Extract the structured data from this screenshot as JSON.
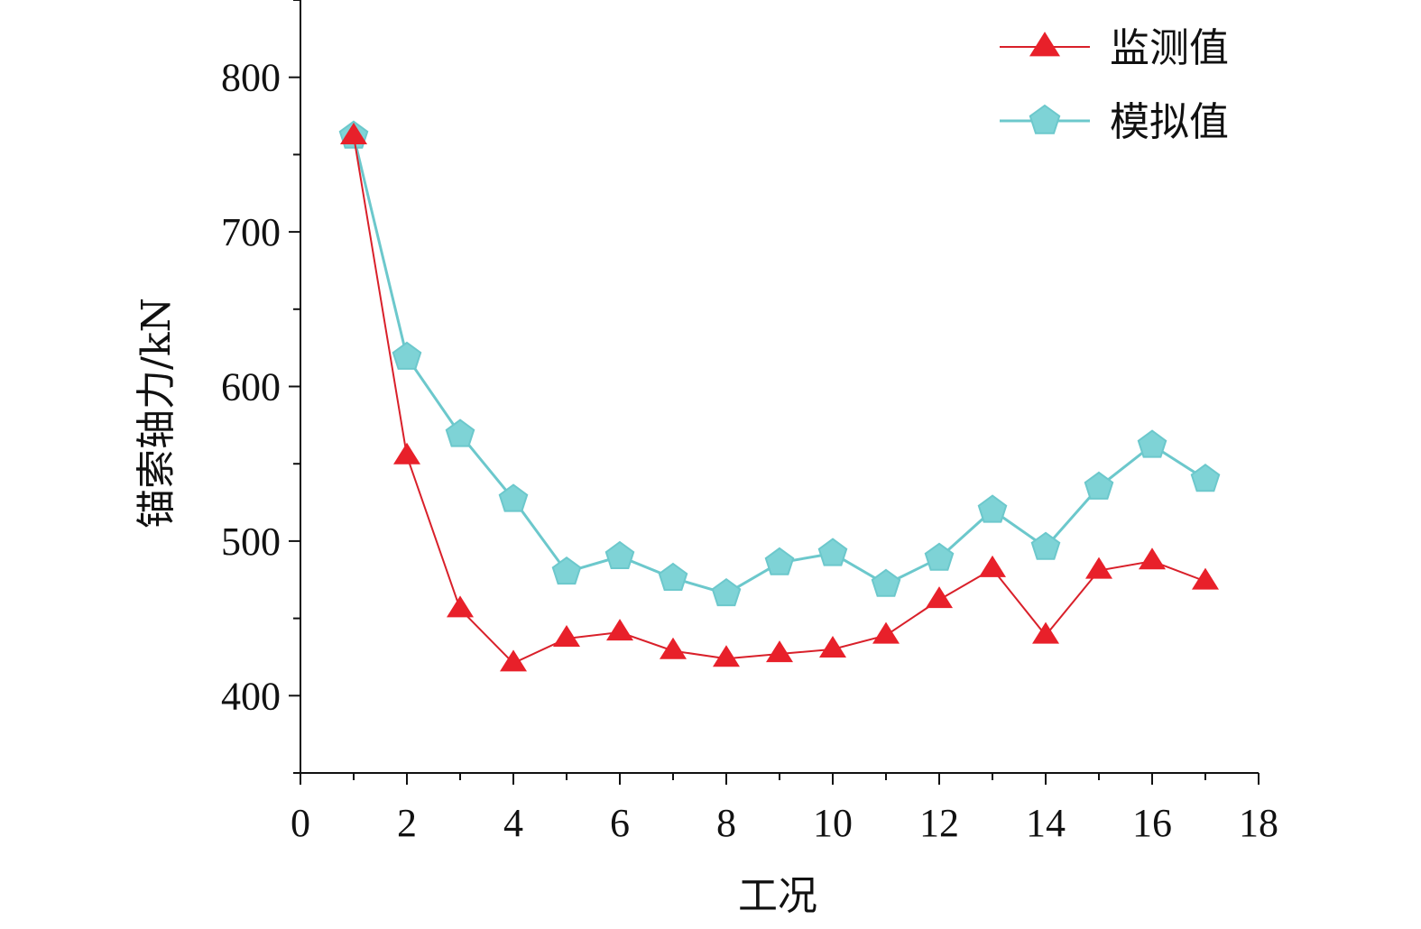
{
  "chart_data": {
    "type": "line",
    "xlabel": "工况",
    "ylabel": "锚索轴力/kN",
    "xlim": [
      0,
      18
    ],
    "ylim": [
      350,
      850
    ],
    "xticks": [
      0,
      2,
      4,
      6,
      8,
      10,
      12,
      14,
      16,
      18
    ],
    "yticks": [
      400,
      500,
      600,
      700,
      800
    ],
    "grid": false,
    "legend_position": "top-right",
    "x": [
      1,
      2,
      3,
      4,
      5,
      6,
      7,
      8,
      9,
      10,
      11,
      12,
      13,
      14,
      15,
      16,
      17
    ],
    "series": [
      {
        "name": "监测值",
        "marker": "triangle",
        "color": "#e8202a",
        "values": [
          762,
          555,
          456,
          421,
          437,
          441,
          429,
          424,
          427,
          430,
          439,
          462,
          482,
          439,
          481,
          487,
          474
        ]
      },
      {
        "name": "模拟值",
        "marker": "pentagon",
        "color": "#7ed3d6",
        "values": [
          762,
          619,
          569,
          527,
          480,
          490,
          476,
          466,
          486,
          492,
          472,
          489,
          520,
          496,
          535,
          562,
          540
        ]
      }
    ]
  }
}
